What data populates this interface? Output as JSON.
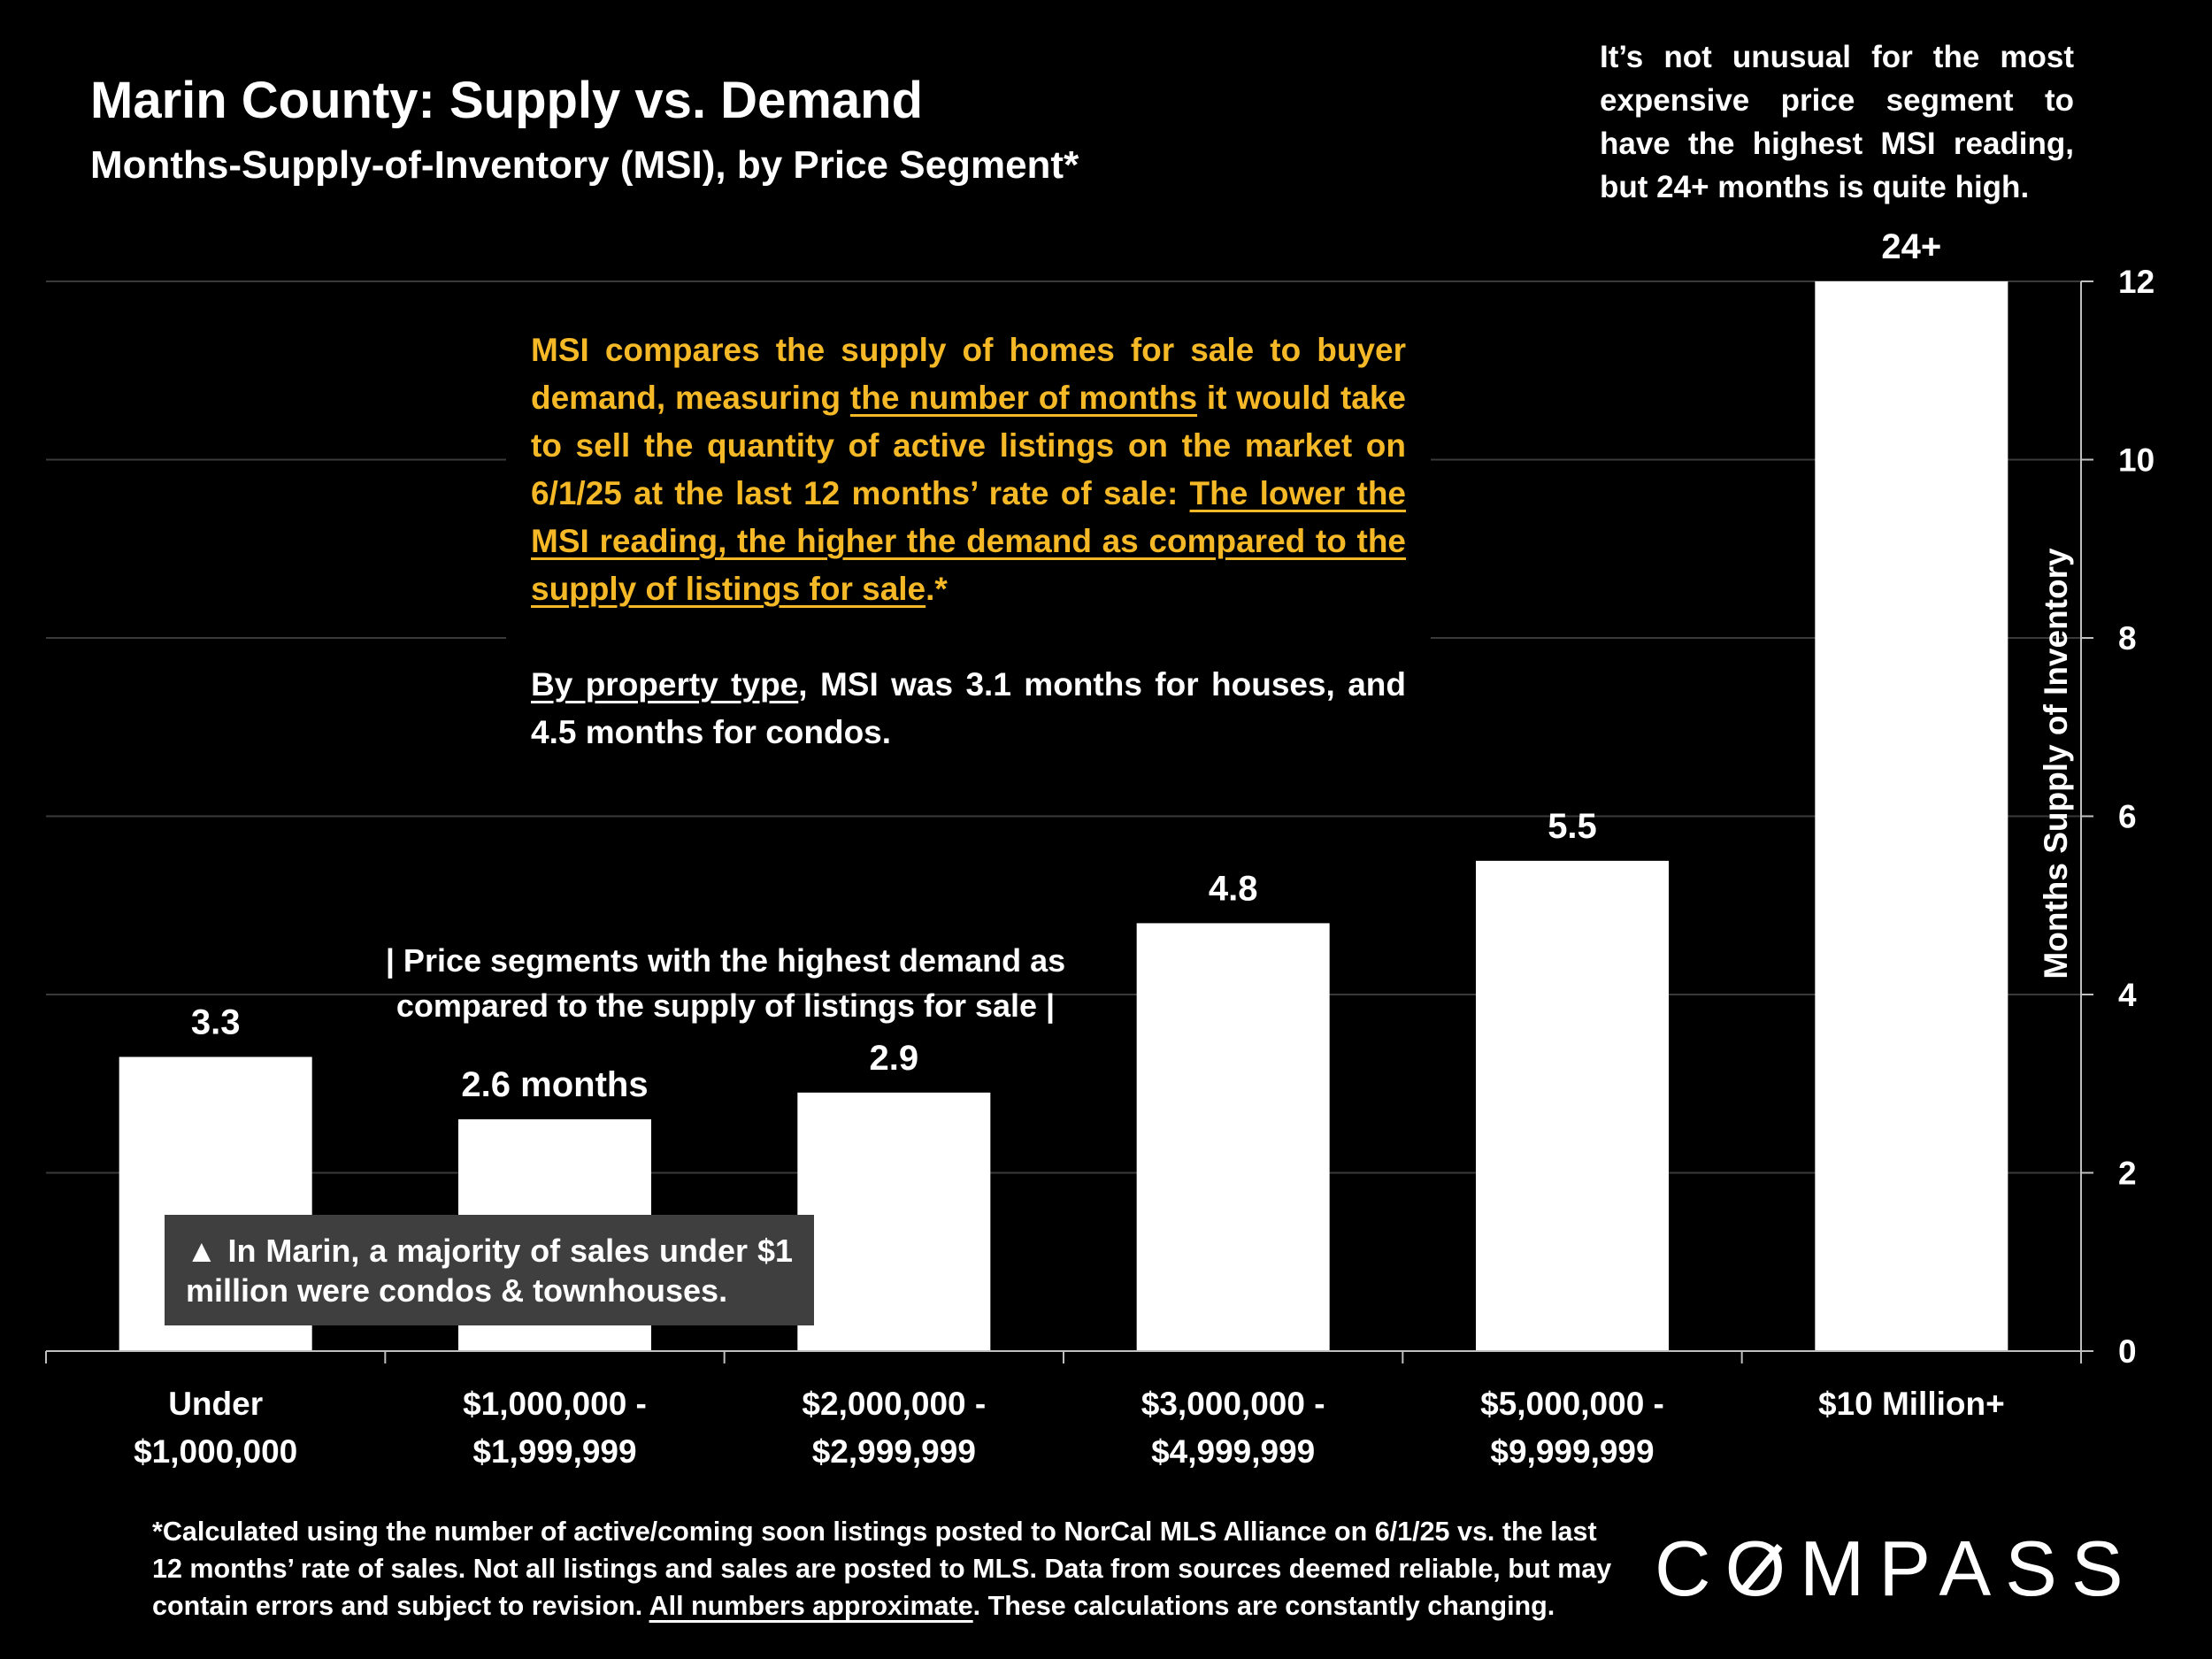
{
  "title": "Marin County: Supply vs. Demand",
  "subtitle": "Months-Supply-of-Inventory (MSI), by Price Segment*",
  "top_note": "It’s not unusual for the most expensive price segment to have the highest MSI reading, but 24+ months is quite high.",
  "callout": {
    "p1_a": "MSI compares the supply of homes for sale to buyer demand, measuring ",
    "p1_u": "the number of months",
    "p1_b": " it would take to sell the quantity of active listings on the market on 6/1/25 at the last 12 months’ rate of sale: ",
    "p1_u2": "The lower the MSI reading, the higher the demand as compared to the supply of listings for sale",
    "p1_c": ".*",
    "p2_u": "By property type",
    "p2_b": ", MSI was 3.1 months for houses, and 4.5 months for condos."
  },
  "highlight_note": "| Price segments with the highest demand as compared to the supply of listings for sale |",
  "condo_note": "▲ In Marin, a majority of sales under $1 million were condos & townhouses.",
  "footnote": {
    "a": "*Calculated using the number of active/coming soon listings posted to NorCal MLS Alliance on 6/1/25 vs. the last 12 months’ rate of sales. Not all listings and sales are posted to MLS. Data from sources deemed reliable, but may contain errors and subject to revision. ",
    "u": "All numbers approximate",
    "b": ". These calculations are constantly changing."
  },
  "logo": "COMPASS",
  "chart_data": {
    "type": "bar",
    "title": "Marin County: Supply vs. Demand",
    "ylabel": "Months Supply of Inventory",
    "ylim": [
      0,
      12
    ],
    "yticks": [
      0,
      2,
      4,
      6,
      8,
      10,
      12
    ],
    "y_axis_side": "right",
    "grid": true,
    "categories": [
      [
        "Under",
        "$1,000,000"
      ],
      [
        "$1,000,000 -",
        "$1,999,999"
      ],
      [
        "$2,000,000 -",
        "$2,999,999"
      ],
      [
        "$3,000,000 -",
        "$4,999,999"
      ],
      [
        "$5,000,000 -",
        "$9,999,999"
      ],
      [
        "$10 Million+"
      ]
    ],
    "values": [
      3.3,
      2.6,
      2.9,
      4.8,
      5.5,
      24
    ],
    "data_labels": [
      "3.3",
      "2.6 months",
      "2.9",
      "4.8",
      "5.5",
      "24+"
    ],
    "bar_color": "#ffffff"
  }
}
